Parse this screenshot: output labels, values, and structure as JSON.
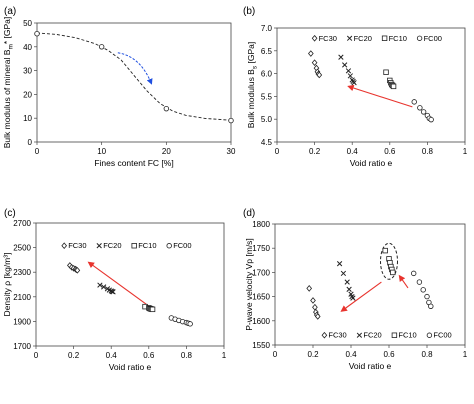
{
  "chart_data": [
    {
      "panel": "(a)",
      "type": "scatter",
      "xlabel": "Fines content FC [%]",
      "ylabel": "Bulk modulus of mineral B",
      "ylabel_sub": "m",
      "ylabel_tail": "* [GPa]",
      "xlim": [
        0,
        30
      ],
      "ylim": [
        0,
        50
      ],
      "xticks": [
        "0",
        "10",
        "20",
        "30"
      ],
      "yticks": [
        "0",
        "10",
        "20",
        "30",
        "40",
        "50"
      ],
      "series": [
        {
          "marker": "circle",
          "points": [
            [
              0,
              45.5
            ],
            [
              10,
              40
            ],
            [
              20,
              14
            ],
            [
              30,
              9
            ]
          ]
        }
      ],
      "curve": "dashed-sigmoid",
      "annotation_arrow_color": "#1f4fe0"
    },
    {
      "panel": "(b)",
      "type": "scatter",
      "xlabel": "Void ratio e",
      "ylabel": "Bulk modulus B",
      "ylabel_sub": "s",
      "ylabel_tail": " [GPa]",
      "xlim": [
        0,
        1
      ],
      "ylim": [
        4.5,
        7.0
      ],
      "xticks": [
        "0",
        "0.2",
        "0.4",
        "0.6",
        "0.8",
        "1"
      ],
      "yticks": [
        "4.5",
        "5.0",
        "5.5",
        "6.0",
        "6.5",
        "7.0"
      ],
      "legend": [
        "FC30",
        "FC20",
        "FC10",
        "FC00"
      ],
      "series": [
        {
          "name": "FC30",
          "marker": "diamond",
          "points": [
            [
              0.18,
              6.44
            ],
            [
              0.2,
              6.24
            ],
            [
              0.21,
              6.12
            ],
            [
              0.215,
              6.04
            ],
            [
              0.22,
              5.99
            ],
            [
              0.225,
              5.97
            ]
          ]
        },
        {
          "name": "FC20",
          "marker": "x",
          "points": [
            [
              0.34,
              6.36
            ],
            [
              0.36,
              6.19
            ],
            [
              0.38,
              6.06
            ],
            [
              0.39,
              5.95
            ],
            [
              0.4,
              5.86
            ],
            [
              0.405,
              5.83
            ],
            [
              0.41,
              5.8
            ]
          ]
        },
        {
          "name": "FC10",
          "marker": "square",
          "points": [
            [
              0.58,
              6.03
            ],
            [
              0.6,
              5.85
            ],
            [
              0.605,
              5.8
            ],
            [
              0.61,
              5.76
            ],
            [
              0.615,
              5.74
            ],
            [
              0.62,
              5.72
            ]
          ]
        },
        {
          "name": "FC00",
          "marker": "circle",
          "points": [
            [
              0.73,
              5.38
            ],
            [
              0.76,
              5.25
            ],
            [
              0.78,
              5.16
            ],
            [
              0.8,
              5.08
            ],
            [
              0.81,
              5.02
            ],
            [
              0.82,
              4.99
            ]
          ]
        }
      ],
      "annotation_arrow_color": "#e8342e"
    },
    {
      "panel": "(c)",
      "type": "scatter",
      "xlabel": "Void ratio e",
      "ylabel": "Density ρ [kg/m³]",
      "xlim": [
        0,
        1
      ],
      "ylim": [
        1700,
        2700
      ],
      "xticks": [
        "0",
        "0.2",
        "0.4",
        "0.6",
        "0.8",
        "1"
      ],
      "yticks": [
        "1700",
        "1900",
        "2100",
        "2300",
        "2500",
        "2700"
      ],
      "legend": [
        "FC30",
        "FC20",
        "FC10",
        "FC00"
      ],
      "series": [
        {
          "name": "FC30",
          "marker": "diamond",
          "points": [
            [
              0.18,
              2355
            ],
            [
              0.19,
              2340
            ],
            [
              0.2,
              2332
            ],
            [
              0.21,
              2325
            ],
            [
              0.215,
              2320
            ],
            [
              0.22,
              2315
            ]
          ]
        },
        {
          "name": "FC20",
          "marker": "x",
          "points": [
            [
              0.34,
              2195
            ],
            [
              0.36,
              2180
            ],
            [
              0.38,
              2165
            ],
            [
              0.39,
              2155
            ],
            [
              0.4,
              2148
            ],
            [
              0.405,
              2143
            ],
            [
              0.41,
              2140
            ]
          ]
        },
        {
          "name": "FC10",
          "marker": "square",
          "points": [
            [
              0.58,
              2020
            ],
            [
              0.6,
              2010
            ],
            [
              0.605,
              2005
            ],
            [
              0.61,
              2002
            ],
            [
              0.615,
              2000
            ],
            [
              0.62,
              1998
            ]
          ]
        },
        {
          "name": "FC00",
          "marker": "circle",
          "points": [
            [
              0.72,
              1928
            ],
            [
              0.74,
              1918
            ],
            [
              0.76,
              1908
            ],
            [
              0.78,
              1898
            ],
            [
              0.8,
              1890
            ],
            [
              0.81,
              1885
            ],
            [
              0.82,
              1880
            ]
          ]
        }
      ],
      "annotation_arrow_color": "#e8342e"
    },
    {
      "panel": "(d)",
      "type": "scatter",
      "xlabel": "Void ratio e",
      "ylabel": "P-wave velocity Vp [m/s]",
      "xlim": [
        0,
        1
      ],
      "ylim": [
        1550,
        1800
      ],
      "xticks": [
        "0",
        "0.2",
        "0.4",
        "0.6",
        "0.8",
        "1"
      ],
      "yticks": [
        "1550",
        "1600",
        "1650",
        "1700",
        "1750",
        "1800"
      ],
      "legend": [
        "FC30",
        "FC20",
        "FC10",
        "FC00"
      ],
      "series": [
        {
          "name": "FC30",
          "marker": "diamond",
          "points": [
            [
              0.18,
              1667
            ],
            [
              0.2,
              1642
            ],
            [
              0.21,
              1628
            ],
            [
              0.215,
              1618
            ],
            [
              0.22,
              1612
            ],
            [
              0.225,
              1609
            ]
          ]
        },
        {
          "name": "FC20",
          "marker": "x",
          "points": [
            [
              0.34,
              1718
            ],
            [
              0.36,
              1698
            ],
            [
              0.38,
              1680
            ],
            [
              0.39,
              1665
            ],
            [
              0.4,
              1655
            ],
            [
              0.405,
              1650
            ],
            [
              0.41,
              1647
            ]
          ]
        },
        {
          "name": "FC10",
          "marker": "square",
          "points": [
            [
              0.58,
              1745
            ],
            [
              0.6,
              1728
            ],
            [
              0.605,
              1720
            ],
            [
              0.61,
              1712
            ],
            [
              0.615,
              1706
            ],
            [
              0.62,
              1700
            ]
          ]
        },
        {
          "name": "FC00",
          "marker": "circle",
          "points": [
            [
              0.73,
              1698
            ],
            [
              0.76,
              1680
            ],
            [
              0.78,
              1664
            ],
            [
              0.8,
              1650
            ],
            [
              0.81,
              1638
            ],
            [
              0.82,
              1630
            ]
          ]
        }
      ],
      "annotation_arrow_color": "#e8342e",
      "highlight": "dashed-ellipse"
    }
  ]
}
